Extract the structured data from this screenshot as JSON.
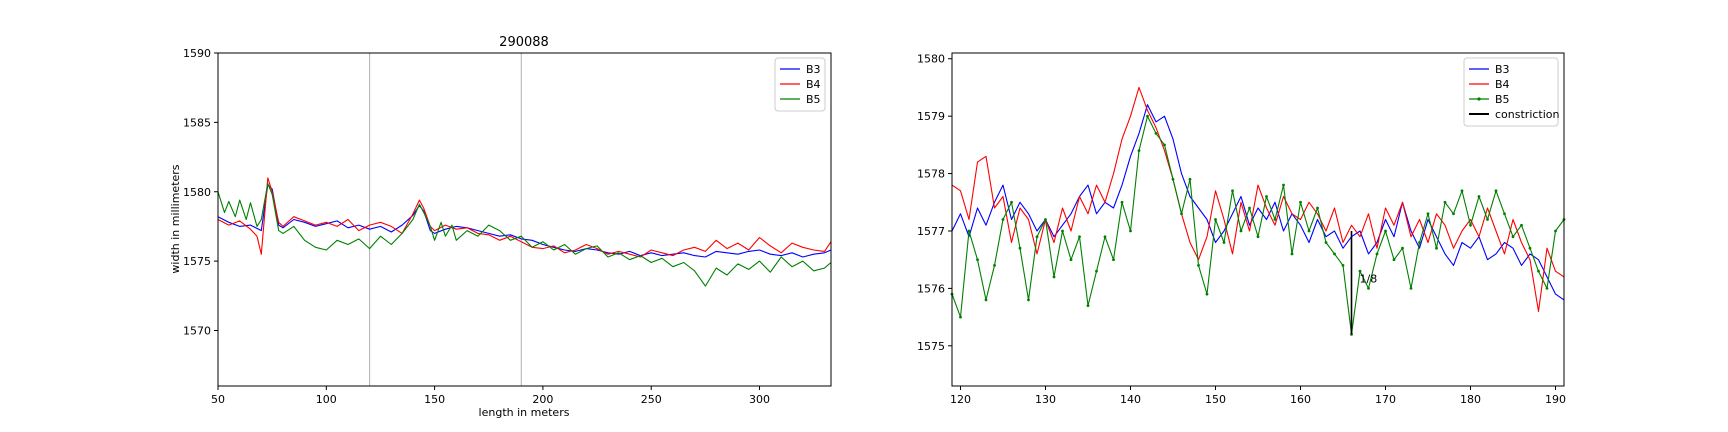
{
  "chart_data": [
    {
      "type": "line",
      "title": "290088",
      "xlabel": "length in meters",
      "ylabel": "width in millimeters",
      "xlim": [
        50,
        333
      ],
      "ylim": [
        1566,
        1590
      ],
      "xticks": [
        50,
        100,
        150,
        200,
        250,
        300
      ],
      "yticks": [
        1570,
        1575,
        1580,
        1585,
        1590
      ],
      "grid": false,
      "legend_position": "top-right",
      "vlines": [
        120,
        190
      ],
      "series": [
        {
          "name": "B3",
          "color": "#0000ff",
          "x": [
            50,
            55,
            60,
            65,
            70,
            73,
            75,
            78,
            80,
            85,
            90,
            95,
            100,
            105,
            110,
            115,
            120,
            125,
            130,
            135,
            140,
            143,
            145,
            148,
            150,
            155,
            160,
            165,
            170,
            175,
            180,
            185,
            190,
            195,
            200,
            205,
            210,
            215,
            220,
            225,
            230,
            235,
            240,
            245,
            250,
            255,
            260,
            265,
            270,
            275,
            280,
            285,
            290,
            295,
            300,
            305,
            310,
            315,
            320,
            325,
            330,
            333
          ],
          "y": [
            1578.2,
            1577.8,
            1577.5,
            1577.6,
            1577.2,
            1580.5,
            1580.2,
            1577.6,
            1577.4,
            1578.0,
            1577.8,
            1577.5,
            1577.7,
            1577.9,
            1577.4,
            1577.6,
            1577.3,
            1577.5,
            1577.1,
            1577.6,
            1578.3,
            1579.0,
            1578.6,
            1577.2,
            1577.0,
            1577.3,
            1577.5,
            1577.4,
            1577.2,
            1577.0,
            1576.8,
            1576.9,
            1576.6,
            1576.5,
            1576.2,
            1576.0,
            1575.8,
            1575.7,
            1575.9,
            1575.8,
            1575.6,
            1575.5,
            1575.7,
            1575.4,
            1575.6,
            1575.4,
            1575.5,
            1575.6,
            1575.4,
            1575.3,
            1575.7,
            1575.6,
            1575.5,
            1575.7,
            1575.8,
            1575.5,
            1575.4,
            1575.6,
            1575.3,
            1575.5,
            1575.6,
            1575.8
          ]
        },
        {
          "name": "B4",
          "color": "#ff0000",
          "x": [
            50,
            55,
            60,
            65,
            68,
            70,
            73,
            75,
            78,
            80,
            85,
            90,
            95,
            100,
            105,
            110,
            115,
            120,
            125,
            130,
            135,
            140,
            143,
            145,
            148,
            150,
            155,
            160,
            165,
            170,
            175,
            180,
            185,
            190,
            195,
            200,
            205,
            210,
            215,
            220,
            225,
            230,
            235,
            240,
            245,
            250,
            255,
            260,
            265,
            270,
            275,
            280,
            285,
            290,
            295,
            300,
            305,
            310,
            315,
            320,
            325,
            330,
            333
          ],
          "y": [
            1578.0,
            1577.6,
            1577.9,
            1577.3,
            1576.8,
            1575.5,
            1581.0,
            1580.0,
            1577.8,
            1577.5,
            1578.2,
            1577.9,
            1577.6,
            1577.8,
            1577.5,
            1578.0,
            1577.2,
            1577.6,
            1577.8,
            1577.5,
            1577.0,
            1578.4,
            1579.4,
            1578.8,
            1577.5,
            1577.2,
            1577.6,
            1577.3,
            1577.4,
            1577.0,
            1576.9,
            1576.5,
            1576.8,
            1576.4,
            1576.0,
            1575.9,
            1576.1,
            1575.6,
            1575.8,
            1576.2,
            1575.9,
            1575.5,
            1575.7,
            1575.5,
            1575.3,
            1575.8,
            1575.6,
            1575.4,
            1575.8,
            1576.0,
            1575.7,
            1576.5,
            1575.9,
            1576.3,
            1575.8,
            1576.7,
            1576.1,
            1575.6,
            1576.3,
            1576.0,
            1575.8,
            1575.7,
            1576.4
          ]
        },
        {
          "name": "B5",
          "color": "#008000",
          "x": [
            50,
            53,
            55,
            58,
            60,
            63,
            65,
            68,
            70,
            73,
            75,
            78,
            80,
            85,
            90,
            95,
            100,
            105,
            110,
            115,
            120,
            125,
            130,
            135,
            140,
            143,
            145,
            148,
            150,
            153,
            155,
            158,
            160,
            165,
            170,
            175,
            180,
            185,
            190,
            195,
            200,
            205,
            210,
            215,
            220,
            225,
            230,
            235,
            240,
            245,
            250,
            255,
            260,
            265,
            270,
            275,
            280,
            285,
            290,
            295,
            300,
            305,
            310,
            315,
            320,
            325,
            330,
            333
          ],
          "y": [
            1580.0,
            1578.5,
            1579.3,
            1578.2,
            1579.4,
            1578.0,
            1579.2,
            1577.5,
            1578.0,
            1580.6,
            1579.8,
            1577.2,
            1577.0,
            1577.5,
            1576.5,
            1576.0,
            1575.8,
            1576.5,
            1576.2,
            1576.6,
            1575.9,
            1576.8,
            1576.2,
            1577.0,
            1578.0,
            1579.1,
            1578.5,
            1577.5,
            1576.5,
            1577.8,
            1576.8,
            1577.6,
            1576.5,
            1577.2,
            1576.8,
            1577.6,
            1577.2,
            1576.5,
            1576.8,
            1576.0,
            1576.4,
            1575.8,
            1576.2,
            1575.5,
            1575.9,
            1576.1,
            1575.3,
            1575.6,
            1575.1,
            1575.4,
            1574.9,
            1575.2,
            1574.6,
            1574.9,
            1574.3,
            1573.2,
            1574.5,
            1574.0,
            1574.8,
            1574.4,
            1575.0,
            1574.2,
            1575.3,
            1574.6,
            1575.0,
            1574.3,
            1574.5,
            1574.9
          ]
        }
      ]
    },
    {
      "type": "line",
      "xlim": [
        119,
        191
      ],
      "ylim": [
        1574.3,
        1580.1
      ],
      "xticks": [
        120,
        130,
        140,
        150,
        160,
        170,
        180,
        190
      ],
      "yticks": [
        1575,
        1576,
        1577,
        1578,
        1579,
        1580
      ],
      "grid": false,
      "legend_position": "top-right",
      "constriction_label": "1/8",
      "series": [
        {
          "name": "B3",
          "color": "#0000ff",
          "x": [
            119,
            120,
            121,
            122,
            123,
            124,
            125,
            126,
            127,
            128,
            129,
            130,
            131,
            132,
            133,
            134,
            135,
            136,
            137,
            138,
            139,
            140,
            141,
            142,
            143,
            144,
            145,
            146,
            147,
            148,
            149,
            150,
            151,
            152,
            153,
            154,
            155,
            156,
            157,
            158,
            159,
            160,
            161,
            162,
            163,
            164,
            165,
            166,
            167,
            168,
            169,
            170,
            171,
            172,
            173,
            174,
            175,
            176,
            177,
            178,
            179,
            180,
            181,
            182,
            183,
            184,
            185,
            186,
            187,
            188,
            189,
            190,
            191
          ],
          "y": [
            1577.0,
            1577.3,
            1576.9,
            1577.4,
            1577.1,
            1577.5,
            1577.8,
            1577.2,
            1577.5,
            1577.3,
            1577.0,
            1577.2,
            1576.9,
            1577.1,
            1577.3,
            1577.6,
            1577.8,
            1577.3,
            1577.5,
            1577.4,
            1577.8,
            1578.3,
            1578.7,
            1579.2,
            1578.9,
            1579.0,
            1578.6,
            1578.0,
            1577.6,
            1577.4,
            1577.2,
            1576.8,
            1577.0,
            1577.3,
            1577.6,
            1577.1,
            1577.4,
            1577.2,
            1577.5,
            1577.0,
            1577.3,
            1577.1,
            1576.8,
            1577.2,
            1576.9,
            1577.0,
            1576.7,
            1576.9,
            1577.0,
            1576.6,
            1576.8,
            1577.2,
            1576.9,
            1577.5,
            1577.0,
            1576.7,
            1577.2,
            1576.9,
            1576.6,
            1576.4,
            1576.8,
            1576.7,
            1576.9,
            1576.5,
            1576.6,
            1576.8,
            1576.7,
            1576.4,
            1576.6,
            1576.5,
            1576.2,
            1575.9,
            1575.8
          ]
        },
        {
          "name": "B4",
          "color": "#ff0000",
          "x": [
            119,
            120,
            121,
            122,
            123,
            124,
            125,
            126,
            127,
            128,
            129,
            130,
            131,
            132,
            133,
            134,
            135,
            136,
            137,
            138,
            139,
            140,
            141,
            142,
            143,
            144,
            145,
            146,
            147,
            148,
            149,
            150,
            151,
            152,
            153,
            154,
            155,
            156,
            157,
            158,
            159,
            160,
            161,
            162,
            163,
            164,
            165,
            166,
            167,
            168,
            169,
            170,
            171,
            172,
            173,
            174,
            175,
            176,
            177,
            178,
            179,
            180,
            181,
            182,
            183,
            184,
            185,
            186,
            187,
            188,
            189,
            190,
            191
          ],
          "y": [
            1577.8,
            1577.7,
            1577.2,
            1578.2,
            1578.3,
            1577.4,
            1577.6,
            1576.8,
            1577.4,
            1577.2,
            1576.6,
            1577.2,
            1576.8,
            1577.4,
            1577.0,
            1577.6,
            1577.3,
            1577.8,
            1577.5,
            1578.0,
            1578.6,
            1579.0,
            1579.5,
            1579.1,
            1578.8,
            1578.4,
            1577.9,
            1577.3,
            1576.8,
            1576.5,
            1576.9,
            1577.7,
            1577.2,
            1576.6,
            1577.5,
            1577.0,
            1577.8,
            1577.4,
            1577.1,
            1577.6,
            1577.3,
            1577.2,
            1577.5,
            1577.3,
            1577.0,
            1577.4,
            1576.8,
            1577.1,
            1576.9,
            1577.3,
            1576.7,
            1577.4,
            1577.1,
            1577.5,
            1576.9,
            1577.2,
            1576.8,
            1577.3,
            1577.1,
            1576.7,
            1577.0,
            1577.2,
            1576.9,
            1577.4,
            1577.0,
            1576.6,
            1577.2,
            1576.8,
            1576.5,
            1575.6,
            1576.7,
            1576.3,
            1576.2
          ]
        },
        {
          "name": "B5",
          "color": "#008000",
          "x": [
            119,
            120,
            121,
            122,
            123,
            124,
            125,
            126,
            127,
            128,
            129,
            130,
            131,
            132,
            133,
            134,
            135,
            136,
            137,
            138,
            139,
            140,
            141,
            142,
            143,
            144,
            145,
            146,
            147,
            148,
            149,
            150,
            151,
            152,
            153,
            154,
            155,
            156,
            157,
            158,
            159,
            160,
            161,
            162,
            163,
            164,
            165,
            166,
            167,
            168,
            169,
            170,
            171,
            172,
            173,
            174,
            175,
            176,
            177,
            178,
            179,
            180,
            181,
            182,
            183,
            184,
            185,
            186,
            187,
            188,
            189,
            190,
            191
          ],
          "y": [
            1575.9,
            1575.5,
            1577.0,
            1576.5,
            1575.8,
            1576.4,
            1577.2,
            1577.5,
            1576.7,
            1575.8,
            1576.9,
            1577.2,
            1576.2,
            1577.0,
            1576.5,
            1576.9,
            1575.7,
            1576.3,
            1576.9,
            1576.5,
            1577.5,
            1577.0,
            1578.4,
            1579.0,
            1578.7,
            1578.5,
            1577.9,
            1577.3,
            1577.9,
            1576.4,
            1575.9,
            1577.2,
            1576.8,
            1577.7,
            1577.0,
            1577.4,
            1576.9,
            1577.6,
            1577.2,
            1577.8,
            1576.6,
            1577.5,
            1577.0,
            1577.4,
            1576.8,
            1576.6,
            1576.4,
            1575.2,
            1576.3,
            1576.0,
            1576.6,
            1577.0,
            1576.5,
            1576.7,
            1576.0,
            1576.8,
            1577.3,
            1576.7,
            1577.5,
            1577.3,
            1577.7,
            1577.1,
            1577.6,
            1577.2,
            1577.7,
            1577.3,
            1576.9,
            1577.1,
            1576.7,
            1576.3,
            1576.0,
            1577.0,
            1577.2
          ]
        }
      ],
      "constriction": {
        "name": "constriction",
        "color": "#000000",
        "x": 166,
        "y": [
          1575.2,
          1577.0
        ]
      }
    }
  ]
}
